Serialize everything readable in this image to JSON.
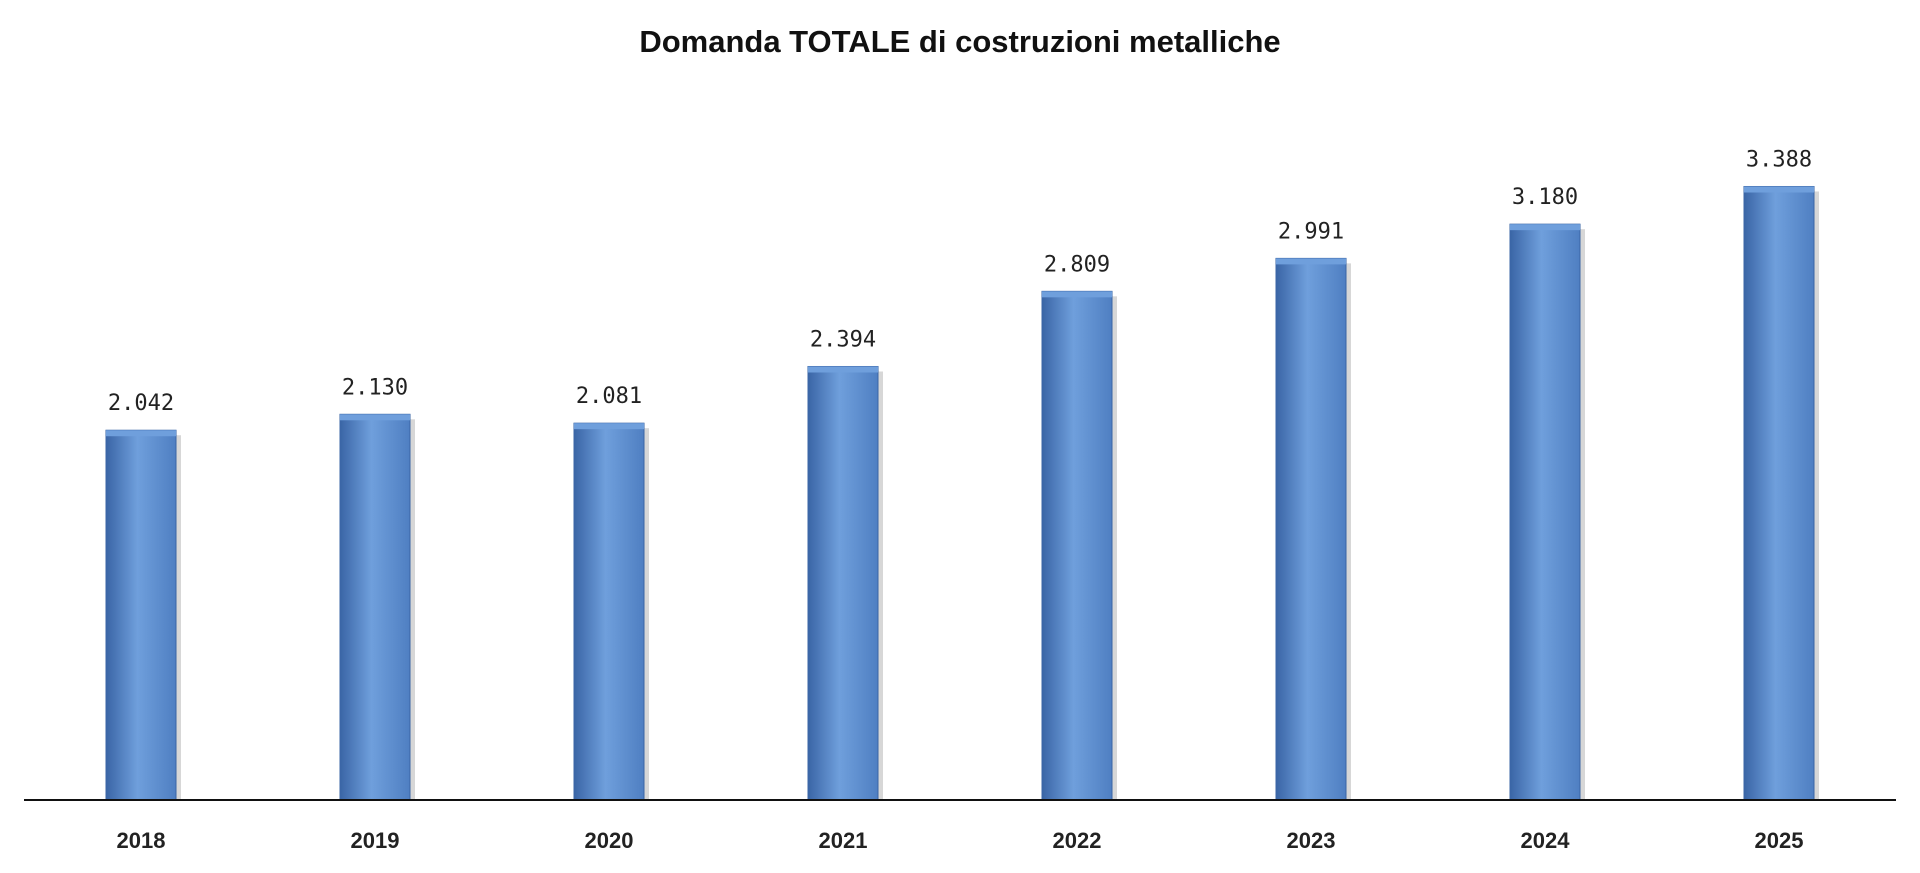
{
  "chart_data": {
    "type": "bar",
    "title": "Domanda TOTALE di costruzioni metalliche",
    "xlabel": "",
    "ylabel": "",
    "categories": [
      "2018",
      "2019",
      "2020",
      "2021",
      "2022",
      "2023",
      "2024",
      "2025"
    ],
    "values": [
      2042,
      2130,
      2081,
      2394,
      2809,
      2991,
      3180,
      3388
    ],
    "value_labels": [
      "2.042",
      "2.130",
      "2.081",
      "2.394",
      "2.809",
      "2.991",
      "3.180",
      "3.388"
    ],
    "ylim": [
      0,
      3700
    ],
    "grid": false,
    "legend": "none",
    "bar_color": "#4f7fc2",
    "bar_color_light": "#6f9fdc",
    "bar_color_dark": "#3a65a6",
    "axis_color": "#111111"
  }
}
